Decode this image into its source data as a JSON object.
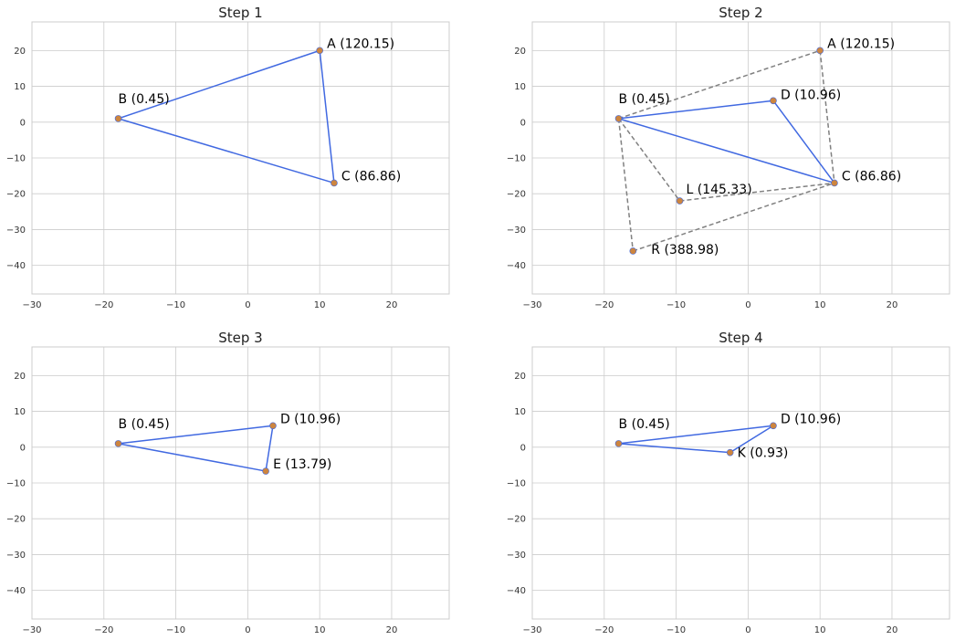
{
  "chart_data": [
    {
      "type": "scatter",
      "title": "Step 1",
      "xlim": [
        -30,
        28
      ],
      "ylim": [
        -48,
        28
      ],
      "xticks": [
        -30,
        -20,
        -10,
        0,
        10,
        20
      ],
      "yticks": [
        -40,
        -30,
        -20,
        -10,
        0,
        10,
        20
      ],
      "xtick_labels": [
        "−30",
        "−20",
        "−10",
        "0",
        "10",
        "20"
      ],
      "ytick_labels": [
        "−40",
        "−30",
        "−20",
        "−10",
        "0",
        "10",
        "20"
      ],
      "grid": true,
      "points": [
        {
          "name": "A",
          "label": "A (120.15)",
          "x": 10,
          "y": 20
        },
        {
          "name": "B",
          "label": "B (0.45)",
          "x": -18,
          "y": 1
        },
        {
          "name": "C",
          "label": "C (86.86)",
          "x": 12,
          "y": -17
        }
      ],
      "solid_edges": [
        [
          "A",
          "B"
        ],
        [
          "A",
          "C"
        ],
        [
          "B",
          "C"
        ]
      ],
      "dashed_edges": []
    },
    {
      "type": "scatter",
      "title": "Step 2",
      "xlim": [
        -30,
        28
      ],
      "ylim": [
        -48,
        28
      ],
      "xticks": [
        -30,
        -20,
        -10,
        0,
        10,
        20
      ],
      "yticks": [
        -40,
        -30,
        -20,
        -10,
        0,
        10,
        20
      ],
      "xtick_labels": [
        "−30",
        "−20",
        "−10",
        "0",
        "10",
        "20"
      ],
      "ytick_labels": [
        "−40",
        "−30",
        "−20",
        "−10",
        "0",
        "10",
        "20"
      ],
      "grid": true,
      "points": [
        {
          "name": "A",
          "label": "A (120.15)",
          "x": 10,
          "y": 20
        },
        {
          "name": "B",
          "label": "B (0.45)",
          "x": -18,
          "y": 1
        },
        {
          "name": "C",
          "label": "C (86.86)",
          "x": 12,
          "y": -17
        },
        {
          "name": "D",
          "label": "D (10.96)",
          "x": 3.5,
          "y": 6
        },
        {
          "name": "L",
          "label": "L (145.33)",
          "x": -9.5,
          "y": -22
        },
        {
          "name": "R",
          "label": "R (388.98)",
          "x": -16,
          "y": -36
        }
      ],
      "solid_edges": [
        [
          "B",
          "D"
        ],
        [
          "D",
          "C"
        ],
        [
          "B",
          "C"
        ]
      ],
      "dashed_edges": [
        [
          "B",
          "A"
        ],
        [
          "A",
          "C"
        ],
        [
          "B",
          "L"
        ],
        [
          "L",
          "C"
        ],
        [
          "B",
          "R"
        ],
        [
          "R",
          "C"
        ]
      ]
    },
    {
      "type": "scatter",
      "title": "Step 3",
      "xlim": [
        -30,
        28
      ],
      "ylim": [
        -48,
        28
      ],
      "xticks": [
        -30,
        -20,
        -10,
        0,
        10,
        20
      ],
      "yticks": [
        -40,
        -30,
        -20,
        -10,
        0,
        10,
        20
      ],
      "xtick_labels": [
        "−30",
        "−20",
        "−10",
        "0",
        "10",
        "20"
      ],
      "ytick_labels": [
        "−40",
        "−30",
        "−20",
        "−10",
        "0",
        "10",
        "20"
      ],
      "grid": true,
      "points": [
        {
          "name": "B",
          "label": "B (0.45)",
          "x": -18,
          "y": 1
        },
        {
          "name": "D",
          "label": "D (10.96)",
          "x": 3.5,
          "y": 6
        },
        {
          "name": "E",
          "label": "E (13.79)",
          "x": 2.5,
          "y": -6.7
        }
      ],
      "solid_edges": [
        [
          "B",
          "D"
        ],
        [
          "D",
          "E"
        ],
        [
          "B",
          "E"
        ]
      ],
      "dashed_edges": []
    },
    {
      "type": "scatter",
      "title": "Step 4",
      "xlim": [
        -30,
        28
      ],
      "ylim": [
        -48,
        28
      ],
      "xticks": [
        -30,
        -20,
        -10,
        0,
        10,
        20
      ],
      "yticks": [
        -40,
        -30,
        -20,
        -10,
        0,
        10,
        20
      ],
      "xtick_labels": [
        "−30",
        "−20",
        "−10",
        "0",
        "10",
        "20"
      ],
      "ytick_labels": [
        "−40",
        "−30",
        "−20",
        "−10",
        "0",
        "10",
        "20"
      ],
      "grid": true,
      "points": [
        {
          "name": "B",
          "label": "B (0.45)",
          "x": -18,
          "y": 1
        },
        {
          "name": "D",
          "label": "D (10.96)",
          "x": 3.5,
          "y": 6
        },
        {
          "name": "K",
          "label": "K (0.93)",
          "x": -2.5,
          "y": -1.5
        }
      ],
      "solid_edges": [
        [
          "B",
          "D"
        ],
        [
          "D",
          "K"
        ],
        [
          "B",
          "K"
        ]
      ],
      "dashed_edges": []
    }
  ],
  "colors": {
    "solid_line": "#4169e1",
    "dashed_line": "#808080",
    "point_fill": "#cd853f",
    "grid": "#cccccc"
  }
}
